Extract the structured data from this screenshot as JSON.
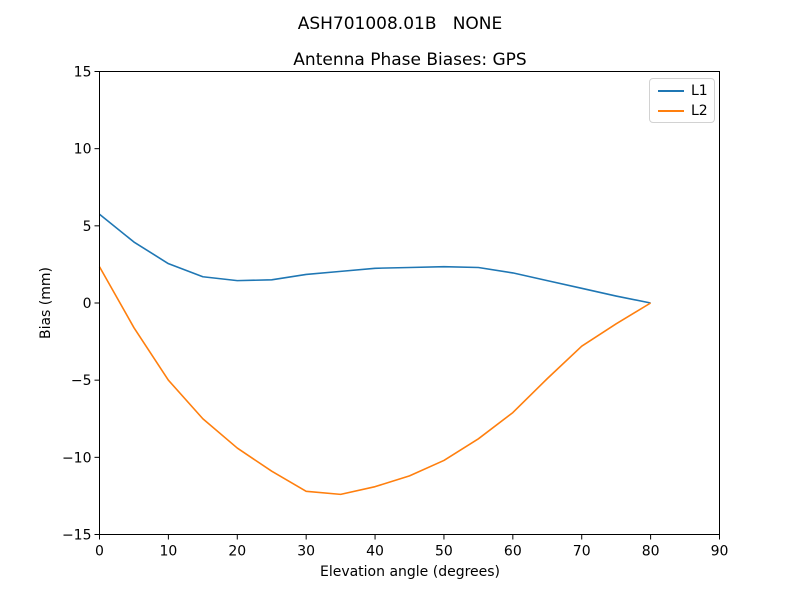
{
  "chart_data": {
    "type": "line",
    "suptitle": "ASH701008.01B   NONE",
    "title": "Antenna Phase Biases: GPS",
    "xlabel": "Elevation angle (degrees)",
    "ylabel": "Bias (mm)",
    "xlim": [
      0,
      90
    ],
    "ylim": [
      -15,
      15
    ],
    "xticks": [
      0,
      10,
      20,
      30,
      40,
      50,
      60,
      70,
      80,
      90
    ],
    "yticks": [
      -15,
      -10,
      -5,
      0,
      5,
      10,
      15
    ],
    "grid": false,
    "x": [
      0,
      5,
      10,
      15,
      20,
      25,
      30,
      35,
      40,
      45,
      50,
      55,
      60,
      65,
      70,
      75,
      80
    ],
    "series": [
      {
        "name": "L1",
        "color": "#1f77b4",
        "values": [
          5.75,
          3.95,
          2.55,
          1.7,
          1.45,
          1.5,
          1.85,
          2.05,
          2.25,
          2.3,
          2.35,
          2.3,
          1.95,
          1.45,
          0.95,
          0.45,
          0.0
        ]
      },
      {
        "name": "L2",
        "color": "#ff7f0e",
        "values": [
          2.35,
          -1.6,
          -5.0,
          -7.5,
          -9.4,
          -10.9,
          -12.2,
          -12.4,
          -11.9,
          -11.2,
          -10.2,
          -8.8,
          -7.1,
          -4.9,
          -2.8,
          -1.35,
          0.0
        ]
      }
    ],
    "legend": {
      "position": "upper right",
      "entries": [
        {
          "label": "L1",
          "color": "#1f77b4"
        },
        {
          "label": "L2",
          "color": "#ff7f0e"
        }
      ]
    },
    "axis_color": "#000000",
    "background_color": "#ffffff"
  }
}
